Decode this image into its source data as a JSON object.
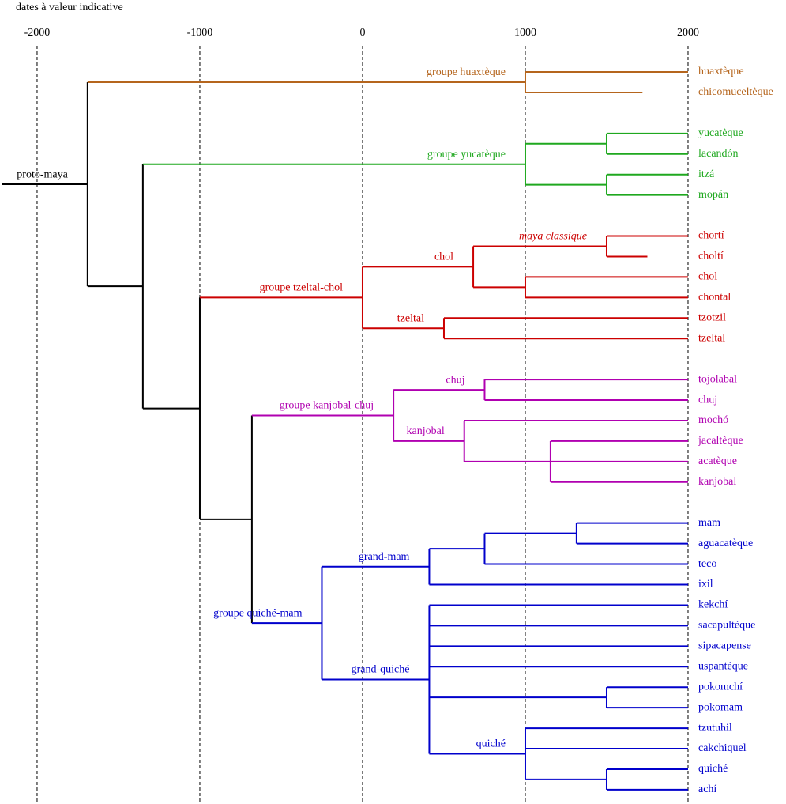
{
  "chart_data": {
    "type": "dendrogram",
    "title": "dates à valeur indicative",
    "xlim": [
      -2228,
      2602
    ],
    "xticks": [
      -2000,
      -1000,
      0,
      1000,
      2000
    ],
    "grid": true,
    "tree": {
      "label": "proto-maya",
      "x": -1690,
      "color": "#000000",
      "children": [
        {
          "label": "groupe huaxtèque",
          "x": 1000,
          "color": "#b5651d",
          "children": [
            {
              "name": "huaxtèque",
              "x": 2000
            },
            {
              "name": "chicomuceltèque",
              "x": 1720
            }
          ]
        },
        {
          "x": -1350,
          "children": [
            {
              "label": "groupe yucatèque",
              "x": 1000,
              "color": "#1fa81f",
              "children": [
                {
                  "x": 1500,
                  "children": [
                    {
                      "name": "yucatèque",
                      "x": 2000
                    },
                    {
                      "name": "lacandón",
                      "x": 2000
                    }
                  ]
                },
                {
                  "x": 1500,
                  "children": [
                    {
                      "name": "itzá",
                      "x": 2000
                    },
                    {
                      "name": "mopán",
                      "x": 2000
                    }
                  ]
                }
              ]
            },
            {
              "x": -1000,
              "children": [
                {
                  "label": "groupe tzeltal-chol",
                  "x": 0,
                  "color": "#cc0000",
                  "children": [
                    {
                      "label": "chol",
                      "x": 680,
                      "children": [
                        {
                          "label": "maya classique",
                          "style": "italic",
                          "x": 1500,
                          "children": [
                            {
                              "name": "chortí",
                              "x": 2000
                            },
                            {
                              "name": "choltí",
                              "x": 1750
                            }
                          ]
                        },
                        {
                          "x": 1000,
                          "children": [
                            {
                              "name": "chol",
                              "x": 2000
                            },
                            {
                              "name": "chontal",
                              "x": 2000
                            }
                          ]
                        }
                      ]
                    },
                    {
                      "label": "tzeltal",
                      "x": 500,
                      "children": [
                        {
                          "name": "tzotzil",
                          "x": 2000
                        },
                        {
                          "name": "tzeltal",
                          "x": 2000
                        }
                      ]
                    }
                  ]
                },
                {
                  "x": -680,
                  "children": [
                    {
                      "label": "groupe kanjobal-chuj",
                      "x": 190,
                      "color": "#b000b0",
                      "children": [
                        {
                          "label": "chuj",
                          "x": 750,
                          "children": [
                            {
                              "name": "tojolabal",
                              "x": 2000
                            },
                            {
                              "name": "chuj",
                              "x": 2000
                            }
                          ]
                        },
                        {
                          "label": "kanjobal",
                          "x": 625,
                          "children": [
                            {
                              "name": "mochó",
                              "x": 2000
                            },
                            {
                              "x": 1155,
                              "children": [
                                {
                                  "name": "jacaltèque",
                                  "x": 2000
                                },
                                {
                                  "name": "acatèque",
                                  "x": 2000
                                },
                                {
                                  "name": "kanjobal",
                                  "x": 2000
                                }
                              ]
                            }
                          ]
                        }
                      ]
                    },
                    {
                      "label": "groupe quiché-mam",
                      "x": -250,
                      "color": "#0000cc",
                      "children": [
                        {
                          "label": "grand-mam",
                          "x": 410,
                          "children": [
                            {
                              "x": 750,
                              "children": [
                                {
                                  "x": 1315,
                                  "children": [
                                    {
                                      "name": "mam",
                                      "x": 2000
                                    },
                                    {
                                      "name": "aguacatèque",
                                      "x": 2000
                                    }
                                  ]
                                },
                                {
                                  "name": "teco",
                                  "x": 2000
                                }
                              ]
                            },
                            {
                              "name": "ixil",
                              "x": 2000
                            }
                          ]
                        },
                        {
                          "label": "grand-quiché",
                          "x": 410,
                          "children": [
                            {
                              "name": "kekchí",
                              "x": 2000
                            },
                            {
                              "name": "sacapultèque",
                              "x": 2000
                            },
                            {
                              "name": "sipacapense",
                              "x": 2000
                            },
                            {
                              "name": "uspantèque",
                              "x": 2000
                            },
                            {
                              "x": 1500,
                              "children": [
                                {
                                  "name": "pokomchí",
                                  "x": 2000
                                },
                                {
                                  "name": "pokomam",
                                  "x": 2000
                                }
                              ]
                            },
                            {
                              "label": "quiché",
                              "x": 1000,
                              "children": [
                                {
                                  "name": "tzutuhil",
                                  "x": 2000
                                },
                                {
                                  "name": "cakchiquel",
                                  "x": 2000
                                },
                                {
                                  "x": 1500,
                                  "children": [
                                    {
                                      "name": "quiché",
                                      "x": 2000
                                    },
                                    {
                                      "name": "achí",
                                      "x": 2000
                                    }
                                  ]
                                }
                              ]
                            }
                          ]
                        }
                      ]
                    }
                  ]
                }
              ]
            }
          ]
        }
      ]
    }
  }
}
